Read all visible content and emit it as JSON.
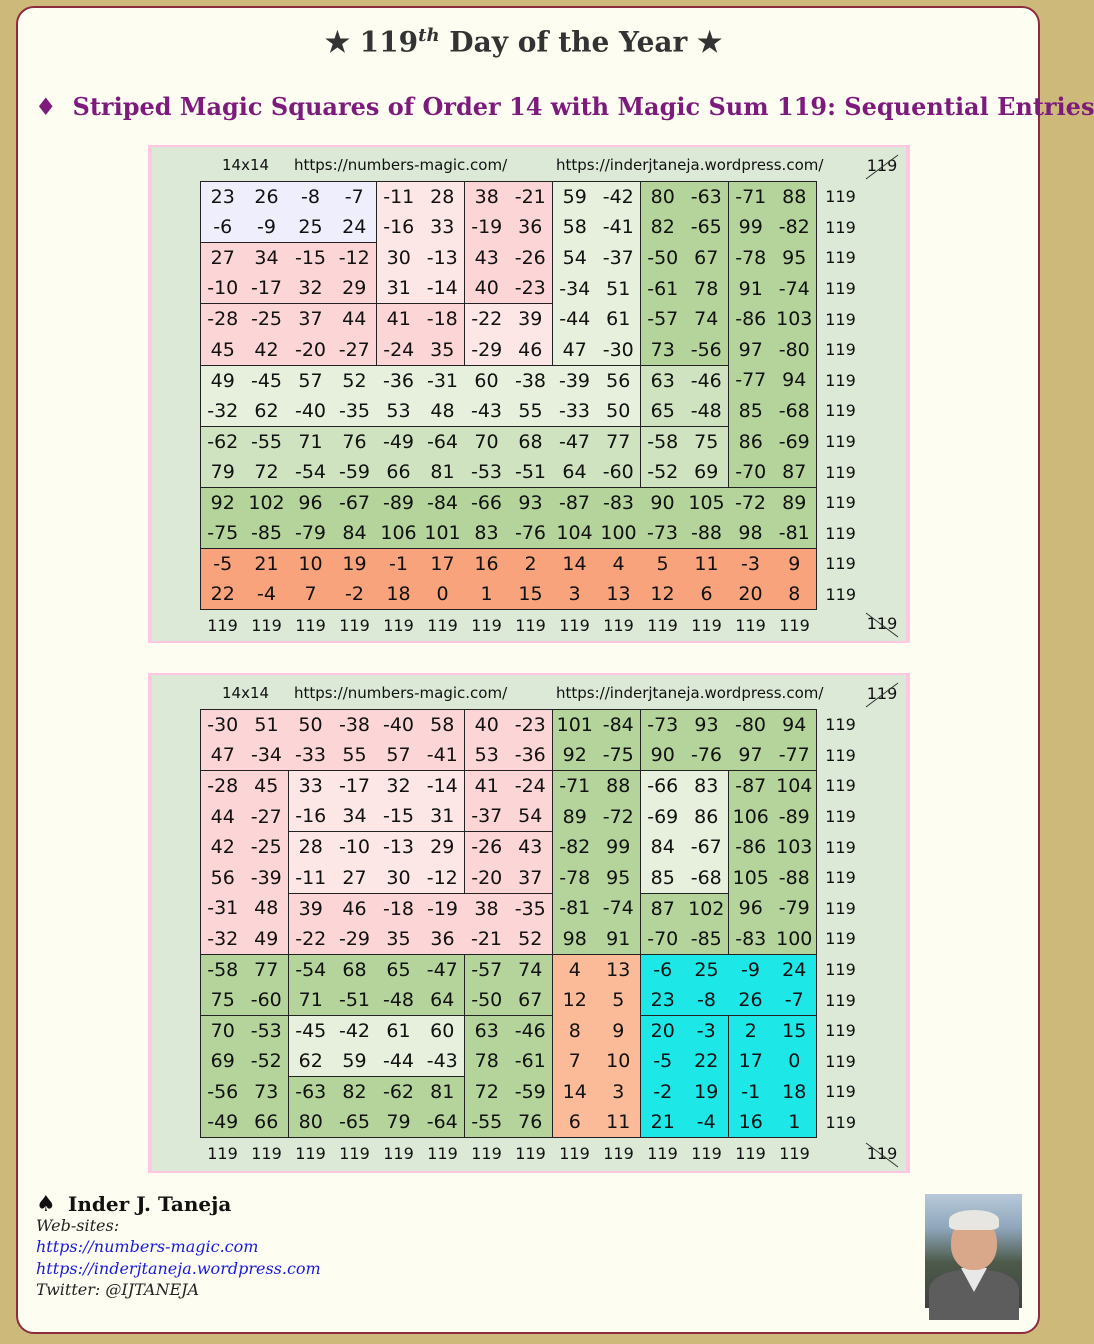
{
  "header": {
    "title_star_left": "★",
    "title_num": "119",
    "title_sup": "th",
    "title_rest": "Day of the Year",
    "title_star_right": "★",
    "subtitle_diamond": "♦",
    "subtitle": "Striped Magic Squares of Order 14 with Magic Sum 119: Sequential Entries"
  },
  "panels": [
    {
      "size_label": "14x14",
      "url1": "https://numbers-magic.com/",
      "url2": "https://inderjtaneja.wordpress.com/",
      "corner": "119",
      "rows": [
        [
          "23",
          "26",
          "-8",
          "-7",
          "-11",
          "28",
          "38",
          "-21",
          "59",
          "-42",
          "80",
          "-63",
          "-71",
          "88"
        ],
        [
          "-6",
          "-9",
          "25",
          "24",
          "-16",
          "33",
          "-19",
          "36",
          "58",
          "-41",
          "82",
          "-65",
          "99",
          "-82"
        ],
        [
          "27",
          "34",
          "-15",
          "-12",
          "30",
          "-13",
          "43",
          "-26",
          "54",
          "-37",
          "-50",
          "67",
          "-78",
          "95"
        ],
        [
          "-10",
          "-17",
          "32",
          "29",
          "31",
          "-14",
          "40",
          "-23",
          "-34",
          "51",
          "-61",
          "78",
          "91",
          "-74"
        ],
        [
          "-28",
          "-25",
          "37",
          "44",
          "41",
          "-18",
          "-22",
          "39",
          "-44",
          "61",
          "-57",
          "74",
          "-86",
          "103"
        ],
        [
          "45",
          "42",
          "-20",
          "-27",
          "-24",
          "35",
          "-29",
          "46",
          "47",
          "-30",
          "73",
          "-56",
          "97",
          "-80"
        ],
        [
          "49",
          "-45",
          "57",
          "52",
          "-36",
          "-31",
          "60",
          "-38",
          "-39",
          "56",
          "63",
          "-46",
          "-77",
          "94"
        ],
        [
          "-32",
          "62",
          "-40",
          "-35",
          "53",
          "48",
          "-43",
          "55",
          "-33",
          "50",
          "65",
          "-48",
          "85",
          "-68"
        ],
        [
          "-62",
          "-55",
          "71",
          "76",
          "-49",
          "-64",
          "70",
          "68",
          "-47",
          "77",
          "-58",
          "75",
          "86",
          "-69"
        ],
        [
          "79",
          "72",
          "-54",
          "-59",
          "66",
          "81",
          "-53",
          "-51",
          "64",
          "-60",
          "-52",
          "69",
          "-70",
          "87"
        ],
        [
          "92",
          "102",
          "96",
          "-67",
          "-89",
          "-84",
          "-66",
          "93",
          "-87",
          "-83",
          "90",
          "105",
          "-72",
          "89"
        ],
        [
          "-75",
          "-85",
          "-79",
          "84",
          "106",
          "101",
          "83",
          "-76",
          "104",
          "100",
          "-73",
          "-88",
          "98",
          "-81"
        ],
        [
          "-5",
          "21",
          "10",
          "19",
          "-1",
          "17",
          "16",
          "2",
          "14",
          "4",
          "5",
          "11",
          "-3",
          "9"
        ],
        [
          "22",
          "-4",
          "7",
          "-2",
          "18",
          "0",
          "1",
          "15",
          "3",
          "13",
          "12",
          "6",
          "20",
          "8"
        ]
      ],
      "row_sums": [
        "119",
        "119",
        "119",
        "119",
        "119",
        "119",
        "119",
        "119",
        "119",
        "119",
        "119",
        "119",
        "119",
        "119"
      ],
      "col_sums": [
        "119",
        "119",
        "119",
        "119",
        "119",
        "119",
        "119",
        "119",
        "119",
        "119",
        "119",
        "119",
        "119",
        "119"
      ],
      "corner_bottom": "119"
    },
    {
      "size_label": "14x14",
      "url1": "https://numbers-magic.com/",
      "url2": "https://inderjtaneja.wordpress.com/",
      "corner": "119",
      "rows": [
        [
          "-30",
          "51",
          "50",
          "-38",
          "-40",
          "58",
          "40",
          "-23",
          "101",
          "-84",
          "-73",
          "93",
          "-80",
          "94"
        ],
        [
          "47",
          "-34",
          "-33",
          "55",
          "57",
          "-41",
          "53",
          "-36",
          "92",
          "-75",
          "90",
          "-76",
          "97",
          "-77"
        ],
        [
          "-28",
          "45",
          "33",
          "-17",
          "32",
          "-14",
          "41",
          "-24",
          "-71",
          "88",
          "-66",
          "83",
          "-87",
          "104"
        ],
        [
          "44",
          "-27",
          "-16",
          "34",
          "-15",
          "31",
          "-37",
          "54",
          "89",
          "-72",
          "-69",
          "86",
          "106",
          "-89"
        ],
        [
          "42",
          "-25",
          "28",
          "-10",
          "-13",
          "29",
          "-26",
          "43",
          "-82",
          "99",
          "84",
          "-67",
          "-86",
          "103"
        ],
        [
          "56",
          "-39",
          "-11",
          "27",
          "30",
          "-12",
          "-20",
          "37",
          "-78",
          "95",
          "85",
          "-68",
          "105",
          "-88"
        ],
        [
          "-31",
          "48",
          "39",
          "46",
          "-18",
          "-19",
          "38",
          "-35",
          "-81",
          "-74",
          "87",
          "102",
          "96",
          "-79"
        ],
        [
          "-32",
          "49",
          "-22",
          "-29",
          "35",
          "36",
          "-21",
          "52",
          "98",
          "91",
          "-70",
          "-85",
          "-83",
          "100"
        ],
        [
          "-58",
          "77",
          "-54",
          "68",
          "65",
          "-47",
          "-57",
          "74",
          "4",
          "13",
          "-6",
          "25",
          "-9",
          "24"
        ],
        [
          "75",
          "-60",
          "71",
          "-51",
          "-48",
          "64",
          "-50",
          "67",
          "12",
          "5",
          "23",
          "-8",
          "26",
          "-7"
        ],
        [
          "70",
          "-53",
          "-45",
          "-42",
          "61",
          "60",
          "63",
          "-46",
          "8",
          "9",
          "20",
          "-3",
          "2",
          "15"
        ],
        [
          "69",
          "-52",
          "62",
          "59",
          "-44",
          "-43",
          "78",
          "-61",
          "7",
          "10",
          "-5",
          "22",
          "17",
          "0"
        ],
        [
          "-56",
          "73",
          "-63",
          "82",
          "-62",
          "81",
          "72",
          "-59",
          "14",
          "3",
          "-2",
          "19",
          "-1",
          "18"
        ],
        [
          "-49",
          "66",
          "80",
          "-65",
          "79",
          "-64",
          "-55",
          "76",
          "6",
          "11",
          "21",
          "-4",
          "16",
          "1"
        ]
      ],
      "row_sums": [
        "119",
        "119",
        "119",
        "119",
        "119",
        "119",
        "119",
        "119",
        "119",
        "119",
        "119",
        "119",
        "119",
        "119"
      ],
      "col_sums": [
        "119",
        "119",
        "119",
        "119",
        "119",
        "119",
        "119",
        "119",
        "119",
        "119",
        "119",
        "119",
        "119",
        "119"
      ],
      "corner_bottom": "119"
    }
  ],
  "colors": {
    "lavender": "#eeeefd",
    "pink": "#fcd6d6",
    "lightpink": "#fde6e6",
    "palegreen": "#e6f0dc",
    "midgreen": "#cfe3c0",
    "green": "#b4d49c",
    "orange": "#f8a37b",
    "peach": "#fbbb98",
    "cyan": "#1de7e7",
    "outer": "#dce9d7"
  },
  "footer": {
    "spade": "♠",
    "author": "Inder J. Taneja",
    "websites_label": "Web-sites:",
    "site1": "https://numbers-magic.com",
    "site2": "https://inderjtaneja.wordpress.com",
    "twitter": "Twitter: @IJTANEJA"
  }
}
